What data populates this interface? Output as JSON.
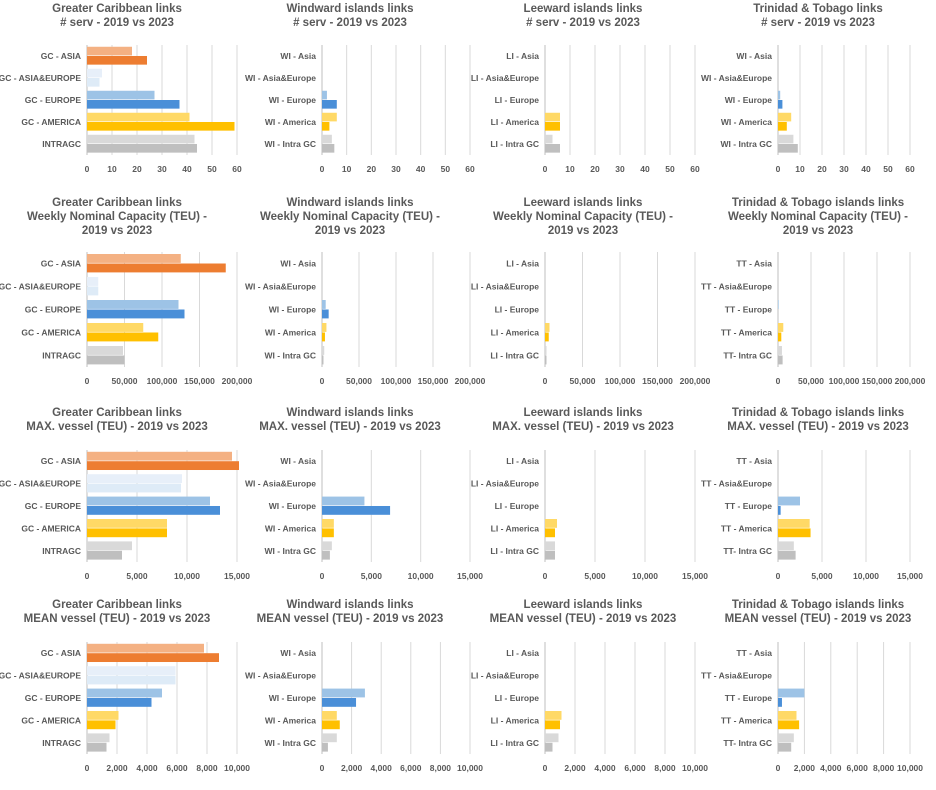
{
  "colors": {
    "asia2019": "#F4B183",
    "asia2023": "#ED7D31",
    "asiaeu2019": "#E7EFF9",
    "asiaeu2023": "#DEEBF7",
    "europe2019": "#9DC3E6",
    "europe2023": "#4A8FD8",
    "america2019": "#FFD966",
    "america2023": "#FFC000",
    "intra2019": "#D9D9D9",
    "intra2023": "#BFBFBF",
    "gridline": "#D9D9D9",
    "text": "#595959"
  },
  "chart_data": [
    {
      "id": "gc-serv",
      "type": "bar",
      "title": [
        "Greater Caribbean links",
        "# serv - 2019 vs 2023"
      ],
      "categories": [
        "GC - ASIA",
        "GC - ASIA&EUROPE",
        "GC - EUROPE",
        "GC - AMERICA",
        "INTRAGC"
      ],
      "keys": [
        "asia",
        "asiaeu",
        "europe",
        "america",
        "intra"
      ],
      "series": [
        {
          "values": [
            18,
            6,
            27,
            41,
            43
          ]
        },
        {
          "values": [
            24,
            5,
            37,
            59,
            44
          ]
        }
      ],
      "xlim": [
        0,
        60
      ],
      "ticks": [
        "0",
        "10",
        "20",
        "30",
        "40",
        "50",
        "60"
      ]
    },
    {
      "id": "wi-serv",
      "type": "bar",
      "title": [
        "Windward islands links",
        "# serv - 2019 vs 2023"
      ],
      "categories": [
        "WI - Asia",
        "WI - Asia&Europe",
        "WI - Europe",
        "WI - America",
        "WI - Intra GC"
      ],
      "keys": [
        "asia",
        "asiaeu",
        "europe",
        "america",
        "intra"
      ],
      "series": [
        {
          "values": [
            0,
            0,
            2,
            6,
            4
          ]
        },
        {
          "values": [
            0,
            0,
            6,
            3,
            5
          ]
        }
      ],
      "xlim": [
        0,
        60
      ],
      "ticks": [
        "0",
        "10",
        "20",
        "30",
        "40",
        "50",
        "60"
      ]
    },
    {
      "id": "li-serv",
      "type": "bar",
      "title": [
        "Leeward islands links",
        "# serv - 2019 vs 2023"
      ],
      "categories": [
        "LI - Asia",
        "LI - Asia&Europe",
        "LI - Europe",
        "LI - America",
        "LI - Intra GC"
      ],
      "keys": [
        "asia",
        "asiaeu",
        "europe",
        "america",
        "intra"
      ],
      "series": [
        {
          "values": [
            0,
            0,
            0,
            6,
            3
          ]
        },
        {
          "values": [
            0,
            0,
            0,
            6,
            6
          ]
        }
      ],
      "xlim": [
        0,
        60
      ],
      "ticks": [
        "0",
        "10",
        "20",
        "30",
        "40",
        "50",
        "60"
      ]
    },
    {
      "id": "tt-serv",
      "type": "bar",
      "title": [
        "Trinidad & Tobago links",
        "# serv - 2019 vs 2023"
      ],
      "categories": [
        "WI - Asia",
        "WI - Asia&Europe",
        "WI - Europe",
        "WI - America",
        "WI - Intra GC"
      ],
      "keys": [
        "asia",
        "asiaeu",
        "europe",
        "america",
        "intra"
      ],
      "series": [
        {
          "values": [
            0,
            0,
            1,
            6,
            7
          ]
        },
        {
          "values": [
            0,
            0,
            2,
            4,
            9
          ]
        }
      ],
      "xlim": [
        0,
        60
      ],
      "ticks": [
        "0",
        "10",
        "20",
        "30",
        "40",
        "50",
        "60"
      ]
    },
    {
      "id": "gc-cap",
      "type": "bar",
      "title": [
        "Greater Caribbean links",
        "Weekly Nominal Capacity (TEU) -",
        "2019 vs 2023"
      ],
      "categories": [
        "GC - ASIA",
        "GC - ASIA&EUROPE",
        "GC - EUROPE",
        "GC - AMERICA",
        "INTRAGC"
      ],
      "keys": [
        "asia",
        "asiaeu",
        "europe",
        "america",
        "intra"
      ],
      "series": [
        {
          "values": [
            125000,
            15000,
            122000,
            75000,
            48000
          ]
        },
        {
          "values": [
            185000,
            15000,
            130000,
            95000,
            50000
          ]
        }
      ],
      "xlim": [
        0,
        200000
      ],
      "ticks": [
        "0",
        "50,000",
        "100,000",
        "150,000",
        "200,000"
      ]
    },
    {
      "id": "wi-cap",
      "type": "bar",
      "title": [
        "Windward islands links",
        "Weekly Nominal Capacity (TEU) -",
        "2019 vs 2023"
      ],
      "categories": [
        "WI - Asia",
        "WI - Asia&Europe",
        "WI - Europe",
        "WI - America",
        "WI - Intra GC"
      ],
      "keys": [
        "asia",
        "asiaeu",
        "europe",
        "america",
        "intra"
      ],
      "series": [
        {
          "values": [
            0,
            0,
            5000,
            6000,
            3000
          ]
        },
        {
          "values": [
            0,
            0,
            9000,
            4000,
            2000
          ]
        }
      ],
      "xlim": [
        0,
        200000
      ],
      "ticks": [
        "0",
        "50,000",
        "100,000",
        "150,000",
        "200,000"
      ]
    },
    {
      "id": "li-cap",
      "type": "bar",
      "title": [
        "Leeward islands links",
        "Weekly Nominal Capacity (TEU) -",
        "2019 vs 2023"
      ],
      "categories": [
        "LI - Asia",
        "LI - Asia&Europe",
        "LI - Europe",
        "LI - America",
        "LI - Intra GC"
      ],
      "keys": [
        "asia",
        "asiaeu",
        "europe",
        "america",
        "intra"
      ],
      "series": [
        {
          "values": [
            0,
            0,
            0,
            6000,
            2000
          ]
        },
        {
          "values": [
            0,
            0,
            0,
            5000,
            2000
          ]
        }
      ],
      "xlim": [
        0,
        200000
      ],
      "ticks": [
        "0",
        "50,000",
        "100,000",
        "150,000",
        "200,000"
      ]
    },
    {
      "id": "tt-cap",
      "type": "bar",
      "title": [
        "Trinidad & Tobago islands links",
        "Weekly Nominal Capacity (TEU) -",
        "2019 vs 2023"
      ],
      "categories": [
        "TT - Asia",
        "TT - Asia&Europe",
        "TT - Europe",
        "TT - America",
        "TT- Intra GC"
      ],
      "keys": [
        "asia",
        "asiaeu",
        "europe",
        "america",
        "intra"
      ],
      "series": [
        {
          "values": [
            0,
            0,
            1000,
            8000,
            6000
          ]
        },
        {
          "values": [
            0,
            0,
            0,
            5000,
            7000
          ]
        }
      ],
      "xlim": [
        0,
        200000
      ],
      "ticks": [
        "0",
        "50,000",
        "100,000",
        "150,000",
        "200,000"
      ]
    },
    {
      "id": "gc-max",
      "type": "bar",
      "title": [
        "Greater Caribbean links",
        "MAX. vessel (TEU) - 2019 vs 2023"
      ],
      "categories": [
        "GC - ASIA",
        "GC - ASIA&EUROPE",
        "GC - EUROPE",
        "GC - AMERICA",
        "INTRAGC"
      ],
      "keys": [
        "asia",
        "asiaeu",
        "europe",
        "america",
        "intra"
      ],
      "series": [
        {
          "values": [
            14500,
            9500,
            12300,
            8000,
            4500
          ]
        },
        {
          "values": [
            15200,
            9400,
            13300,
            8000,
            3500
          ]
        }
      ],
      "xlim": [
        0,
        15000
      ],
      "ticks": [
        "0",
        "5,000",
        "10,000",
        "15,000"
      ]
    },
    {
      "id": "wi-max",
      "type": "bar",
      "title": [
        "Windward islands links",
        "MAX. vessel (TEU) - 2019 vs 2023"
      ],
      "categories": [
        "WI - Asia",
        "WI - Asia&Europe",
        "WI - Europe",
        "WI - America",
        "WI - Intra GC"
      ],
      "keys": [
        "asia",
        "asiaeu",
        "europe",
        "america",
        "intra"
      ],
      "series": [
        {
          "values": [
            0,
            0,
            4300,
            1200,
            1000
          ]
        },
        {
          "values": [
            0,
            0,
            6900,
            1200,
            800
          ]
        }
      ],
      "xlim": [
        0,
        15000
      ],
      "ticks": [
        "0",
        "5,000",
        "10,000",
        "15,000"
      ]
    },
    {
      "id": "li-max",
      "type": "bar",
      "title": [
        "Leeward islands links",
        "MAX. vessel (TEU) - 2019 vs 2023"
      ],
      "categories": [
        "LI - Asia",
        "LI - Asia&Europe",
        "LI - Europe",
        "LI - America",
        "LI - Intra GC"
      ],
      "keys": [
        "asia",
        "asiaeu",
        "europe",
        "america",
        "intra"
      ],
      "series": [
        {
          "values": [
            0,
            0,
            0,
            1200,
            1000
          ]
        },
        {
          "values": [
            0,
            0,
            0,
            1000,
            1000
          ]
        }
      ],
      "xlim": [
        0,
        15000
      ],
      "ticks": [
        "0",
        "5,000",
        "10,000",
        "15,000"
      ]
    },
    {
      "id": "tt-max",
      "type": "bar",
      "title": [
        "Trinidad & Tobago islands links",
        "MAX. vessel (TEU) - 2019 vs 2023"
      ],
      "categories": [
        "TT - Asia",
        "TT - Asia&Europe",
        "TT - Europe",
        "TT - America",
        "TT- Intra GC"
      ],
      "keys": [
        "asia",
        "asiaeu",
        "europe",
        "america",
        "intra"
      ],
      "series": [
        {
          "values": [
            0,
            0,
            2500,
            3600,
            1800
          ]
        },
        {
          "values": [
            0,
            0,
            300,
            3700,
            2000
          ]
        }
      ],
      "xlim": [
        0,
        15000
      ],
      "ticks": [
        "0",
        "5,000",
        "10,000",
        "15,000"
      ]
    },
    {
      "id": "gc-mean",
      "type": "bar",
      "title": [
        "Greater Caribbean links",
        "MEAN vessel (TEU) - 2019 vs 2023"
      ],
      "categories": [
        "GC - ASIA",
        "GC - ASIA&EUROPE",
        "GC - EUROPE",
        "GC - AMERICA",
        "INTRAGC"
      ],
      "keys": [
        "asia",
        "asiaeu",
        "europe",
        "america",
        "intra"
      ],
      "series": [
        {
          "values": [
            7800,
            5900,
            5000,
            2100,
            1500
          ]
        },
        {
          "values": [
            8800,
            5900,
            4300,
            1900,
            1300
          ]
        }
      ],
      "xlim": [
        0,
        10000
      ],
      "ticks": [
        "0",
        "2,000",
        "4,000",
        "6,000",
        "8,000",
        "10,000"
      ]
    },
    {
      "id": "wi-mean",
      "type": "bar",
      "title": [
        "Windward islands links",
        "MEAN vessel (TEU) - 2019 vs 2023"
      ],
      "categories": [
        "WI - Asia",
        "WI - Asia&Europe",
        "WI - Europe",
        "WI - America",
        "WI - Intra GC"
      ],
      "keys": [
        "asia",
        "asiaeu",
        "europe",
        "america",
        "intra"
      ],
      "series": [
        {
          "values": [
            0,
            0,
            2900,
            1000,
            1000
          ]
        },
        {
          "values": [
            0,
            0,
            2300,
            1200,
            400
          ]
        }
      ],
      "xlim": [
        0,
        10000
      ],
      "ticks": [
        "0",
        "2,000",
        "4,000",
        "6,000",
        "8,000",
        "10,000"
      ]
    },
    {
      "id": "li-mean",
      "type": "bar",
      "title": [
        "Leeward islands links",
        "MEAN vessel (TEU) - 2019 vs 2023"
      ],
      "categories": [
        "LI - Asia",
        "LI - Asia&Europe",
        "LI - Europe",
        "LI - America",
        "LI - Intra GC"
      ],
      "keys": [
        "asia",
        "asiaeu",
        "europe",
        "america",
        "intra"
      ],
      "series": [
        {
          "values": [
            0,
            0,
            0,
            1100,
            900
          ]
        },
        {
          "values": [
            0,
            0,
            0,
            1000,
            500
          ]
        }
      ],
      "xlim": [
        0,
        10000
      ],
      "ticks": [
        "0",
        "2,000",
        "4,000",
        "6,000",
        "8,000",
        "10,000"
      ]
    },
    {
      "id": "tt-mean",
      "type": "bar",
      "title": [
        "Trinidad & Tobago islands links",
        "MEAN vessel (TEU) - 2019 vs 2023"
      ],
      "categories": [
        "TT - Asia",
        "TT - Asia&Europe",
        "TT - Europe",
        "TT - America",
        "TT- Intra GC"
      ],
      "keys": [
        "asia",
        "asiaeu",
        "europe",
        "america",
        "intra"
      ],
      "series": [
        {
          "values": [
            0,
            0,
            2000,
            1400,
            1200
          ]
        },
        {
          "values": [
            0,
            0,
            300,
            1600,
            1000
          ]
        }
      ],
      "xlim": [
        0,
        10000
      ],
      "ticks": [
        "0",
        "2,000",
        "4,000",
        "6,000",
        "8,000",
        "10,000"
      ]
    }
  ]
}
